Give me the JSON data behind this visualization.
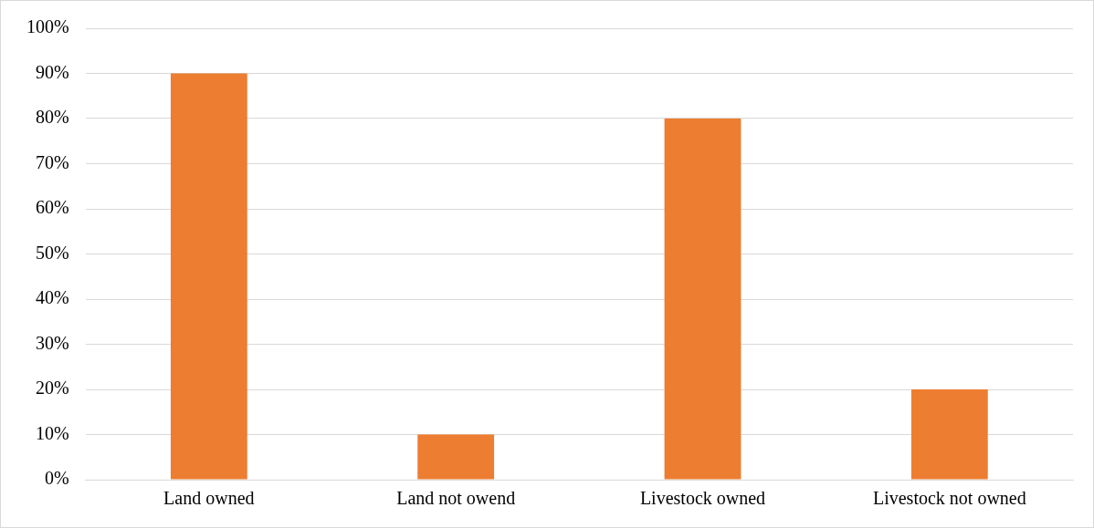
{
  "chart_data": {
    "type": "bar",
    "categories": [
      "Land owned",
      "Land not owend",
      "Livestock owned",
      "Livestock not owned"
    ],
    "values": [
      90,
      10,
      80,
      20
    ],
    "color": "#ed7d31",
    "ylim": [
      0,
      100
    ],
    "yticks": [
      {
        "value": 0,
        "label": "0%"
      },
      {
        "value": 10,
        "label": "10%"
      },
      {
        "value": 20,
        "label": "20%"
      },
      {
        "value": 30,
        "label": "30%"
      },
      {
        "value": 40,
        "label": "40%"
      },
      {
        "value": 50,
        "label": "50%"
      },
      {
        "value": 60,
        "label": "60%"
      },
      {
        "value": 70,
        "label": "70%"
      },
      {
        "value": 80,
        "label": "80%"
      },
      {
        "value": 90,
        "label": "90%"
      },
      {
        "value": 100,
        "label": "100%"
      }
    ],
    "grid": "y",
    "legend": false
  }
}
